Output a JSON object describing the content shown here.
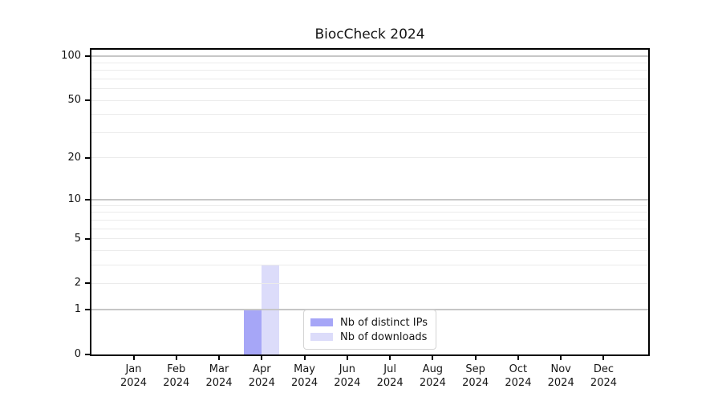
{
  "chart_data": {
    "type": "bar",
    "title": "BiocCheck 2024",
    "categories": [
      "Jan 2024",
      "Feb 2024",
      "Mar 2024",
      "Apr 2024",
      "May 2024",
      "Jun 2024",
      "Jul 2024",
      "Aug 2024",
      "Sep 2024",
      "Oct 2024",
      "Nov 2024",
      "Dec 2024"
    ],
    "series": [
      {
        "name": "Nb of distinct IPs",
        "color": "#a6a6f7",
        "values": [
          0,
          0,
          0,
          1,
          0,
          0,
          0,
          0,
          0,
          0,
          0,
          0
        ]
      },
      {
        "name": "Nb of downloads",
        "color": "#dcdcfa",
        "values": [
          0,
          0,
          0,
          3,
          0,
          0,
          0,
          0,
          0,
          0,
          0,
          0
        ]
      }
    ],
    "xlabel": "",
    "ylabel": "",
    "yscale": "log1p",
    "ylim": [
      0,
      100
    ],
    "yticks": [
      0,
      1,
      2,
      5,
      10,
      20,
      50,
      100
    ],
    "grid": true,
    "gridlines_major": [
      1,
      10,
      100
    ],
    "gridlines_minor": [
      2,
      3,
      4,
      5,
      6,
      7,
      8,
      9,
      20,
      30,
      40,
      50,
      60,
      70,
      80,
      90
    ],
    "legend_position": "lower center"
  },
  "colors": {
    "background": "#ffffff",
    "bar_distinct_ips": "#a6a6f7",
    "bar_downloads": "#dcdcfa",
    "grid_major": "#c6c6c6",
    "grid_minor": "#ebebeb",
    "spine": "#000000",
    "text": "#151515",
    "legend_border": "#d4d4d4"
  }
}
